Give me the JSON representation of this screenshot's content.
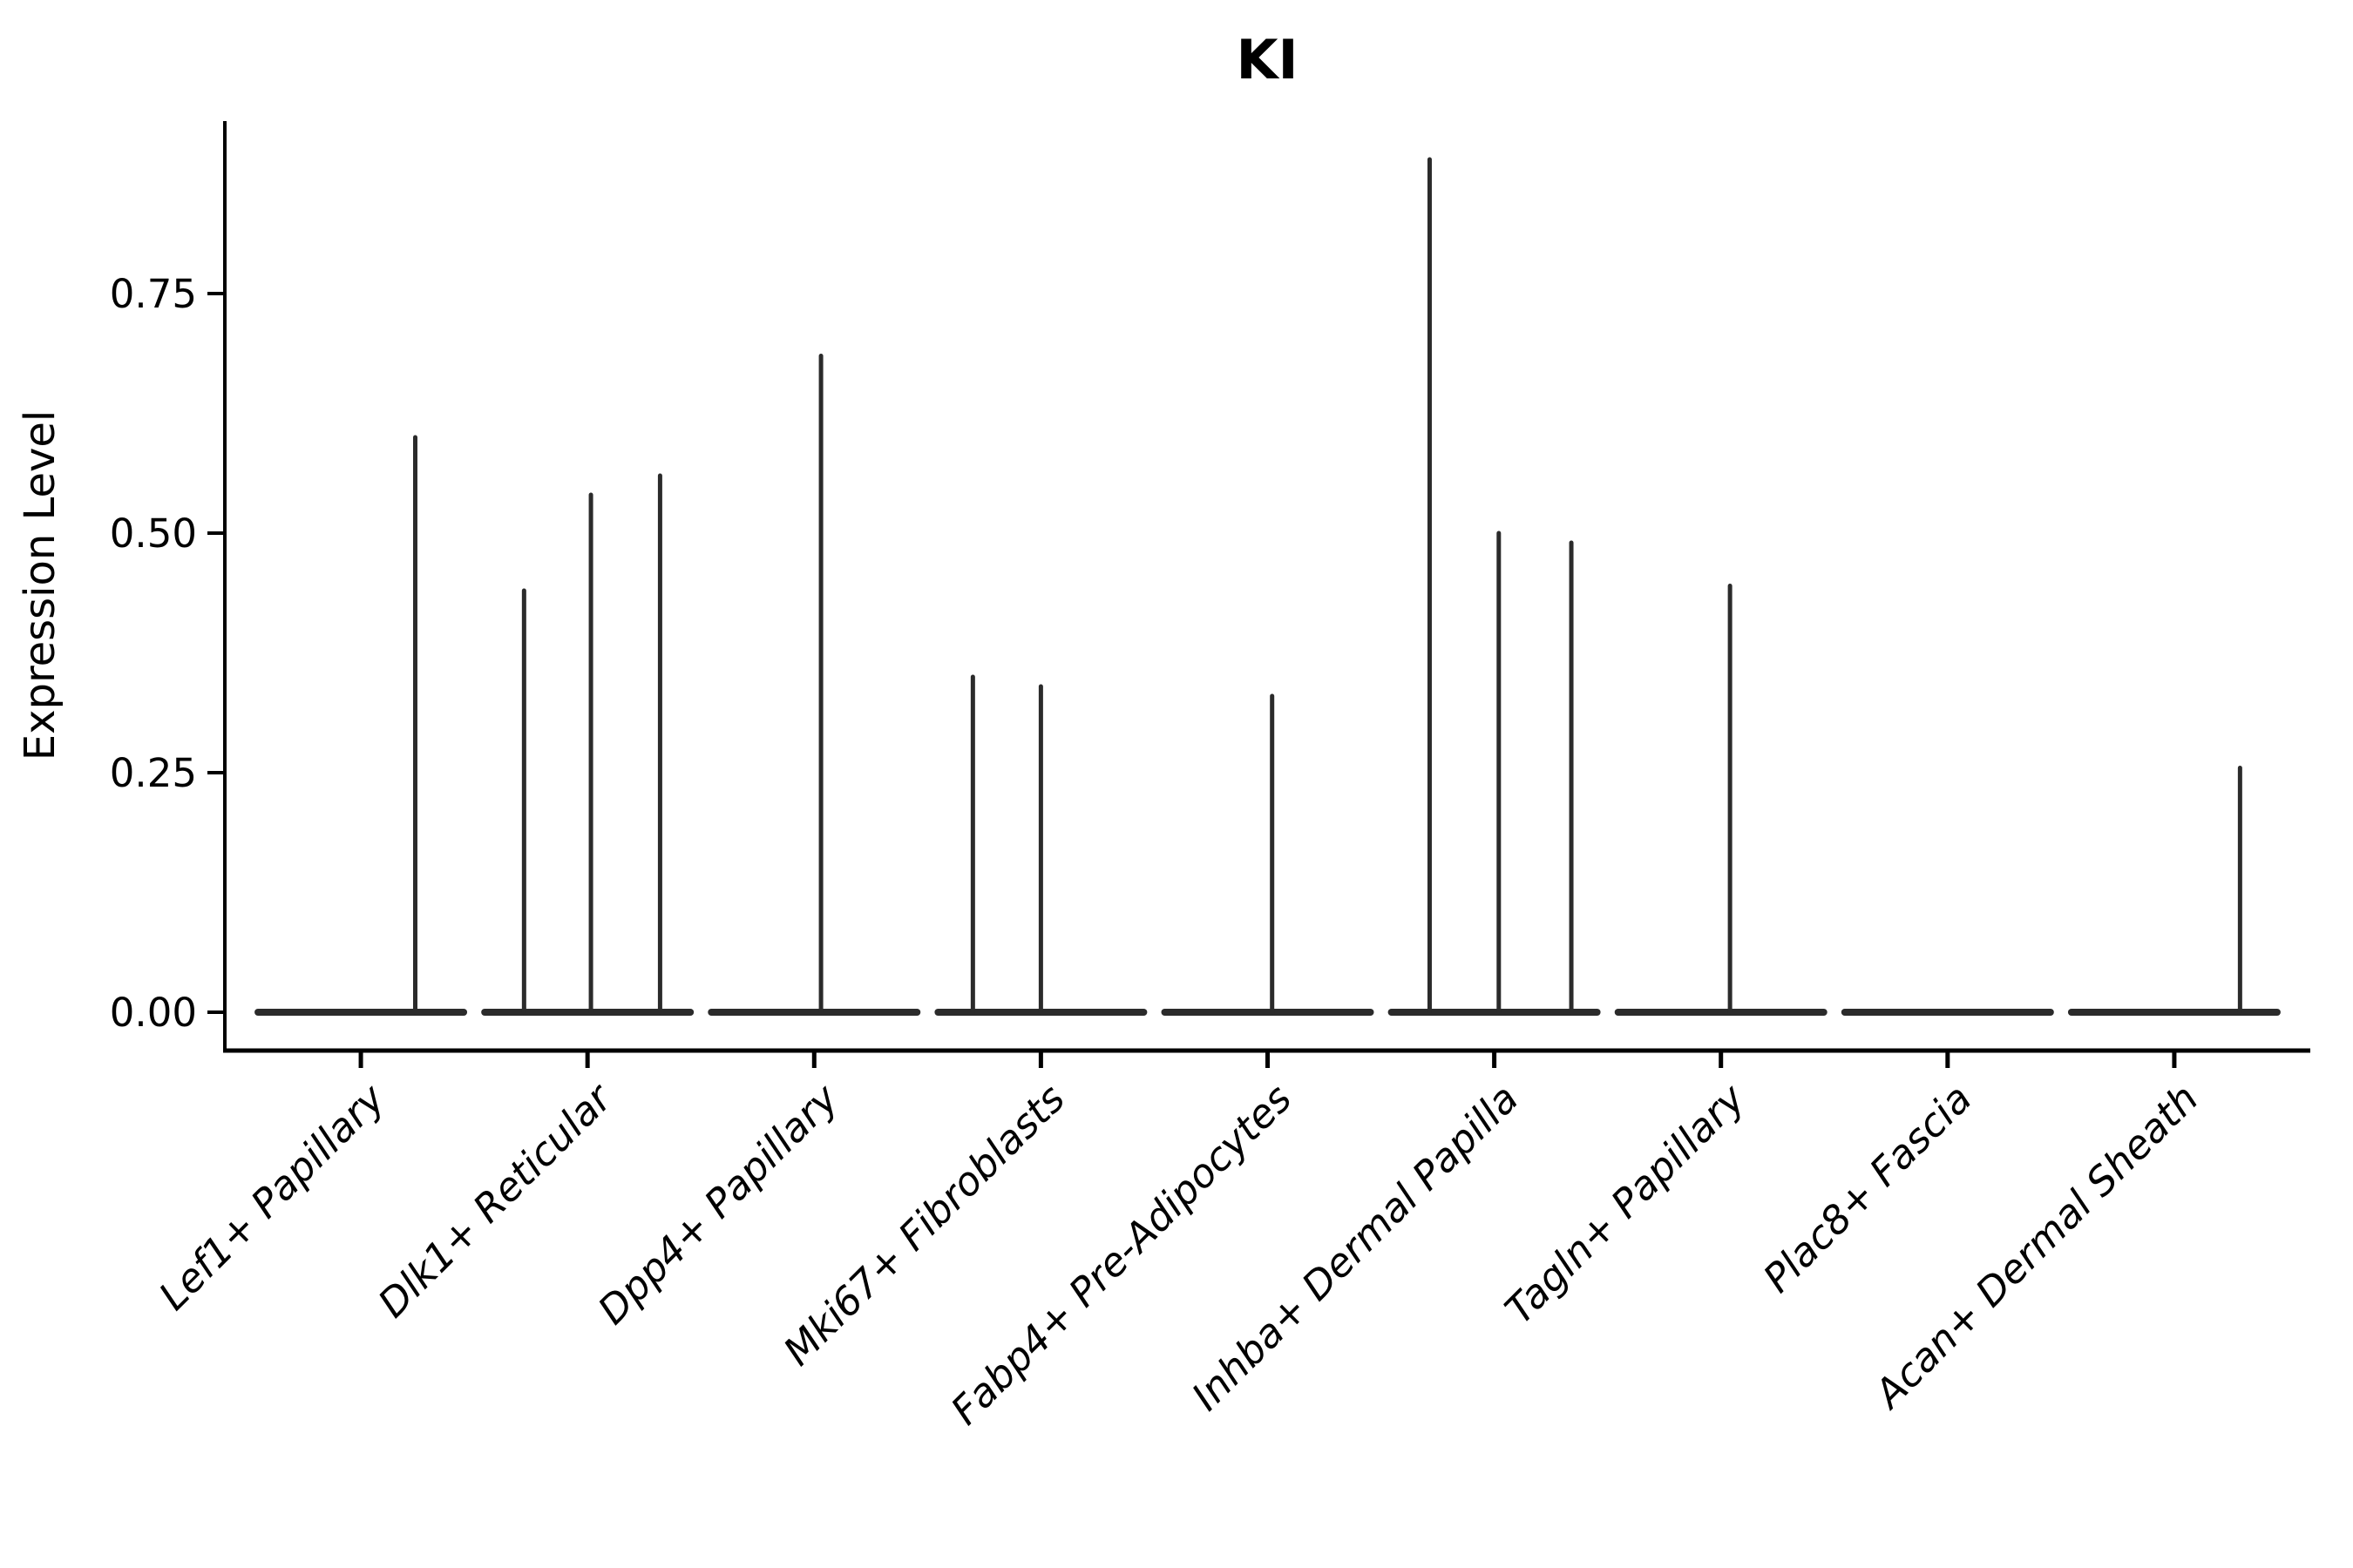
{
  "figure": {
    "title": "KI",
    "background_color": "#ffffff",
    "text_color": "#000000",
    "axis_color": "#000000",
    "violin_color": "#2b2b2b"
  },
  "chart_data": {
    "type": "violin",
    "title": "KI",
    "xlabel": "",
    "ylabel": "Expression Level",
    "grid": false,
    "legend": "none",
    "ylim": [
      0,
      0.93
    ],
    "yticks": [
      {
        "label": "0.00",
        "value": 0.0
      },
      {
        "label": "0.25",
        "value": 0.25
      },
      {
        "label": "0.50",
        "value": 0.5
      },
      {
        "label": "0.75",
        "value": 0.75
      }
    ],
    "categories": [
      "Lef1+ Papillary",
      "Dlk1+ Reticular",
      "Dpp4+ Papillary",
      "Mki67+ Fibroblasts",
      "Fabp4+ Pre-Adipocytes",
      "Inhba+ Dermal Papilla",
      "Tagln+ Papillary",
      "Plac8+ Fascia",
      "Acan+ Dermal Sheath"
    ],
    "series": [
      {
        "name": "Lef1+ Papillary",
        "baseline_value": 0.0,
        "spikes": [
          {
            "offset": 0.24,
            "value": 0.6
          }
        ]
      },
      {
        "name": "Dlk1+ Reticular",
        "baseline_value": 0.0,
        "spikes": [
          {
            "offset": -0.28,
            "value": 0.44
          },
          {
            "offset": 0.015,
            "value": 0.54
          },
          {
            "offset": 0.32,
            "value": 0.56
          }
        ]
      },
      {
        "name": "Dpp4+ Papillary",
        "baseline_value": 0.0,
        "spikes": [
          {
            "offset": 0.03,
            "value": 0.685
          }
        ]
      },
      {
        "name": "Mki67+ Fibroblasts",
        "baseline_value": 0.0,
        "spikes": [
          {
            "offset": -0.3,
            "value": 0.35
          },
          {
            "offset": 0.0,
            "value": 0.34
          }
        ]
      },
      {
        "name": "Fabp4+ Pre-Adipocytes",
        "baseline_value": 0.0,
        "spikes": [
          {
            "offset": 0.02,
            "value": 0.33
          }
        ]
      },
      {
        "name": "Inhba+ Dermal Papilla",
        "baseline_value": 0.0,
        "spikes": [
          {
            "offset": -0.285,
            "value": 0.89
          },
          {
            "offset": 0.02,
            "value": 0.5
          },
          {
            "offset": 0.34,
            "value": 0.49
          }
        ]
      },
      {
        "name": "Tagln+ Papillary",
        "baseline_value": 0.0,
        "spikes": [
          {
            "offset": 0.04,
            "value": 0.445
          }
        ]
      },
      {
        "name": "Plac8+ Fascia",
        "baseline_value": 0.0,
        "spikes": []
      },
      {
        "name": "Acan+ Dermal Sheath",
        "baseline_value": 0.0,
        "spikes": [
          {
            "offset": 0.29,
            "value": 0.255
          }
        ]
      }
    ]
  }
}
